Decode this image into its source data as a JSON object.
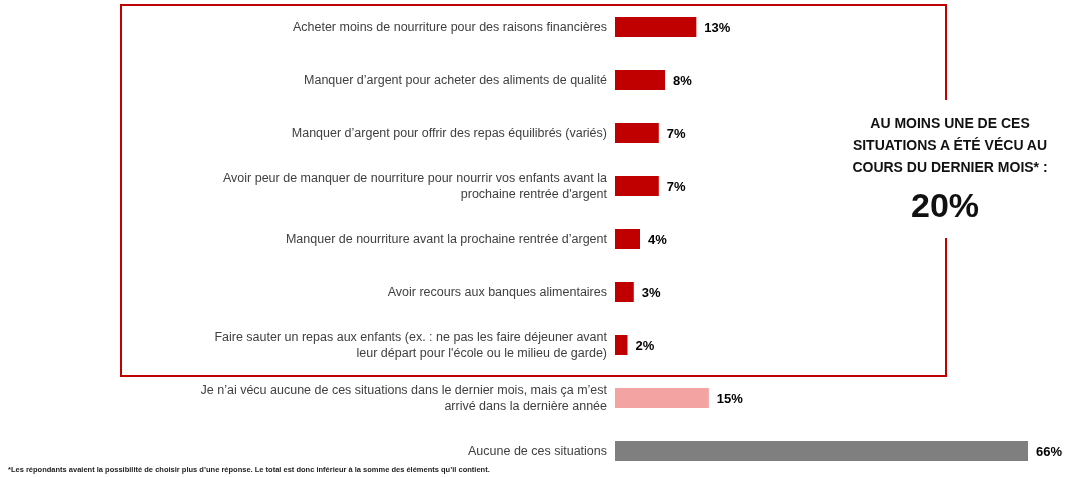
{
  "chart_data": {
    "type": "bar",
    "orientation": "horizontal",
    "categories": [
      "Acheter moins de nourriture pour des raisons financières",
      "Manquer d’argent pour acheter des aliments de qualité",
      "Manquer d’argent pour offrir des repas équilibrés (variés)",
      "Avoir peur de manquer de nourriture pour nourrir vos enfants avant la prochaine rentrée d'argent",
      "Manquer de nourriture avant la prochaine rentrée d’argent",
      "Avoir recours aux banques alimentaires",
      "Faire sauter un repas aux enfants (ex. : ne pas les faire déjeuner avant leur départ pour l'école ou le milieu de garde)",
      "Je n’ai vécu aucune de ces situations dans le dernier mois, mais ça m’est arrivé dans la dernière année",
      "Aucune de ces situations"
    ],
    "values": [
      13,
      8,
      7,
      7,
      4,
      3,
      2,
      15,
      66
    ],
    "colors": [
      "#c00000",
      "#c00000",
      "#c00000",
      "#c00000",
      "#c00000",
      "#c00000",
      "#c00000",
      "#f4a3a3",
      "#7f7f7f"
    ],
    "value_labels": [
      "13%",
      "8%",
      "7%",
      "7%",
      "4%",
      "3%",
      "2%",
      "15%",
      "66%"
    ],
    "annotations": [
      "AU MOINS UNE DE CES SITUATIONS A ÉTÉ VÉCU AU COURS DU DERNIER MOIS* :",
      "20%",
      "*Les répondants avaient la possibilité de choisir plus d’une réponse. Le total est donc inférieur à la somme des éléments qu’il contient."
    ]
  }
}
